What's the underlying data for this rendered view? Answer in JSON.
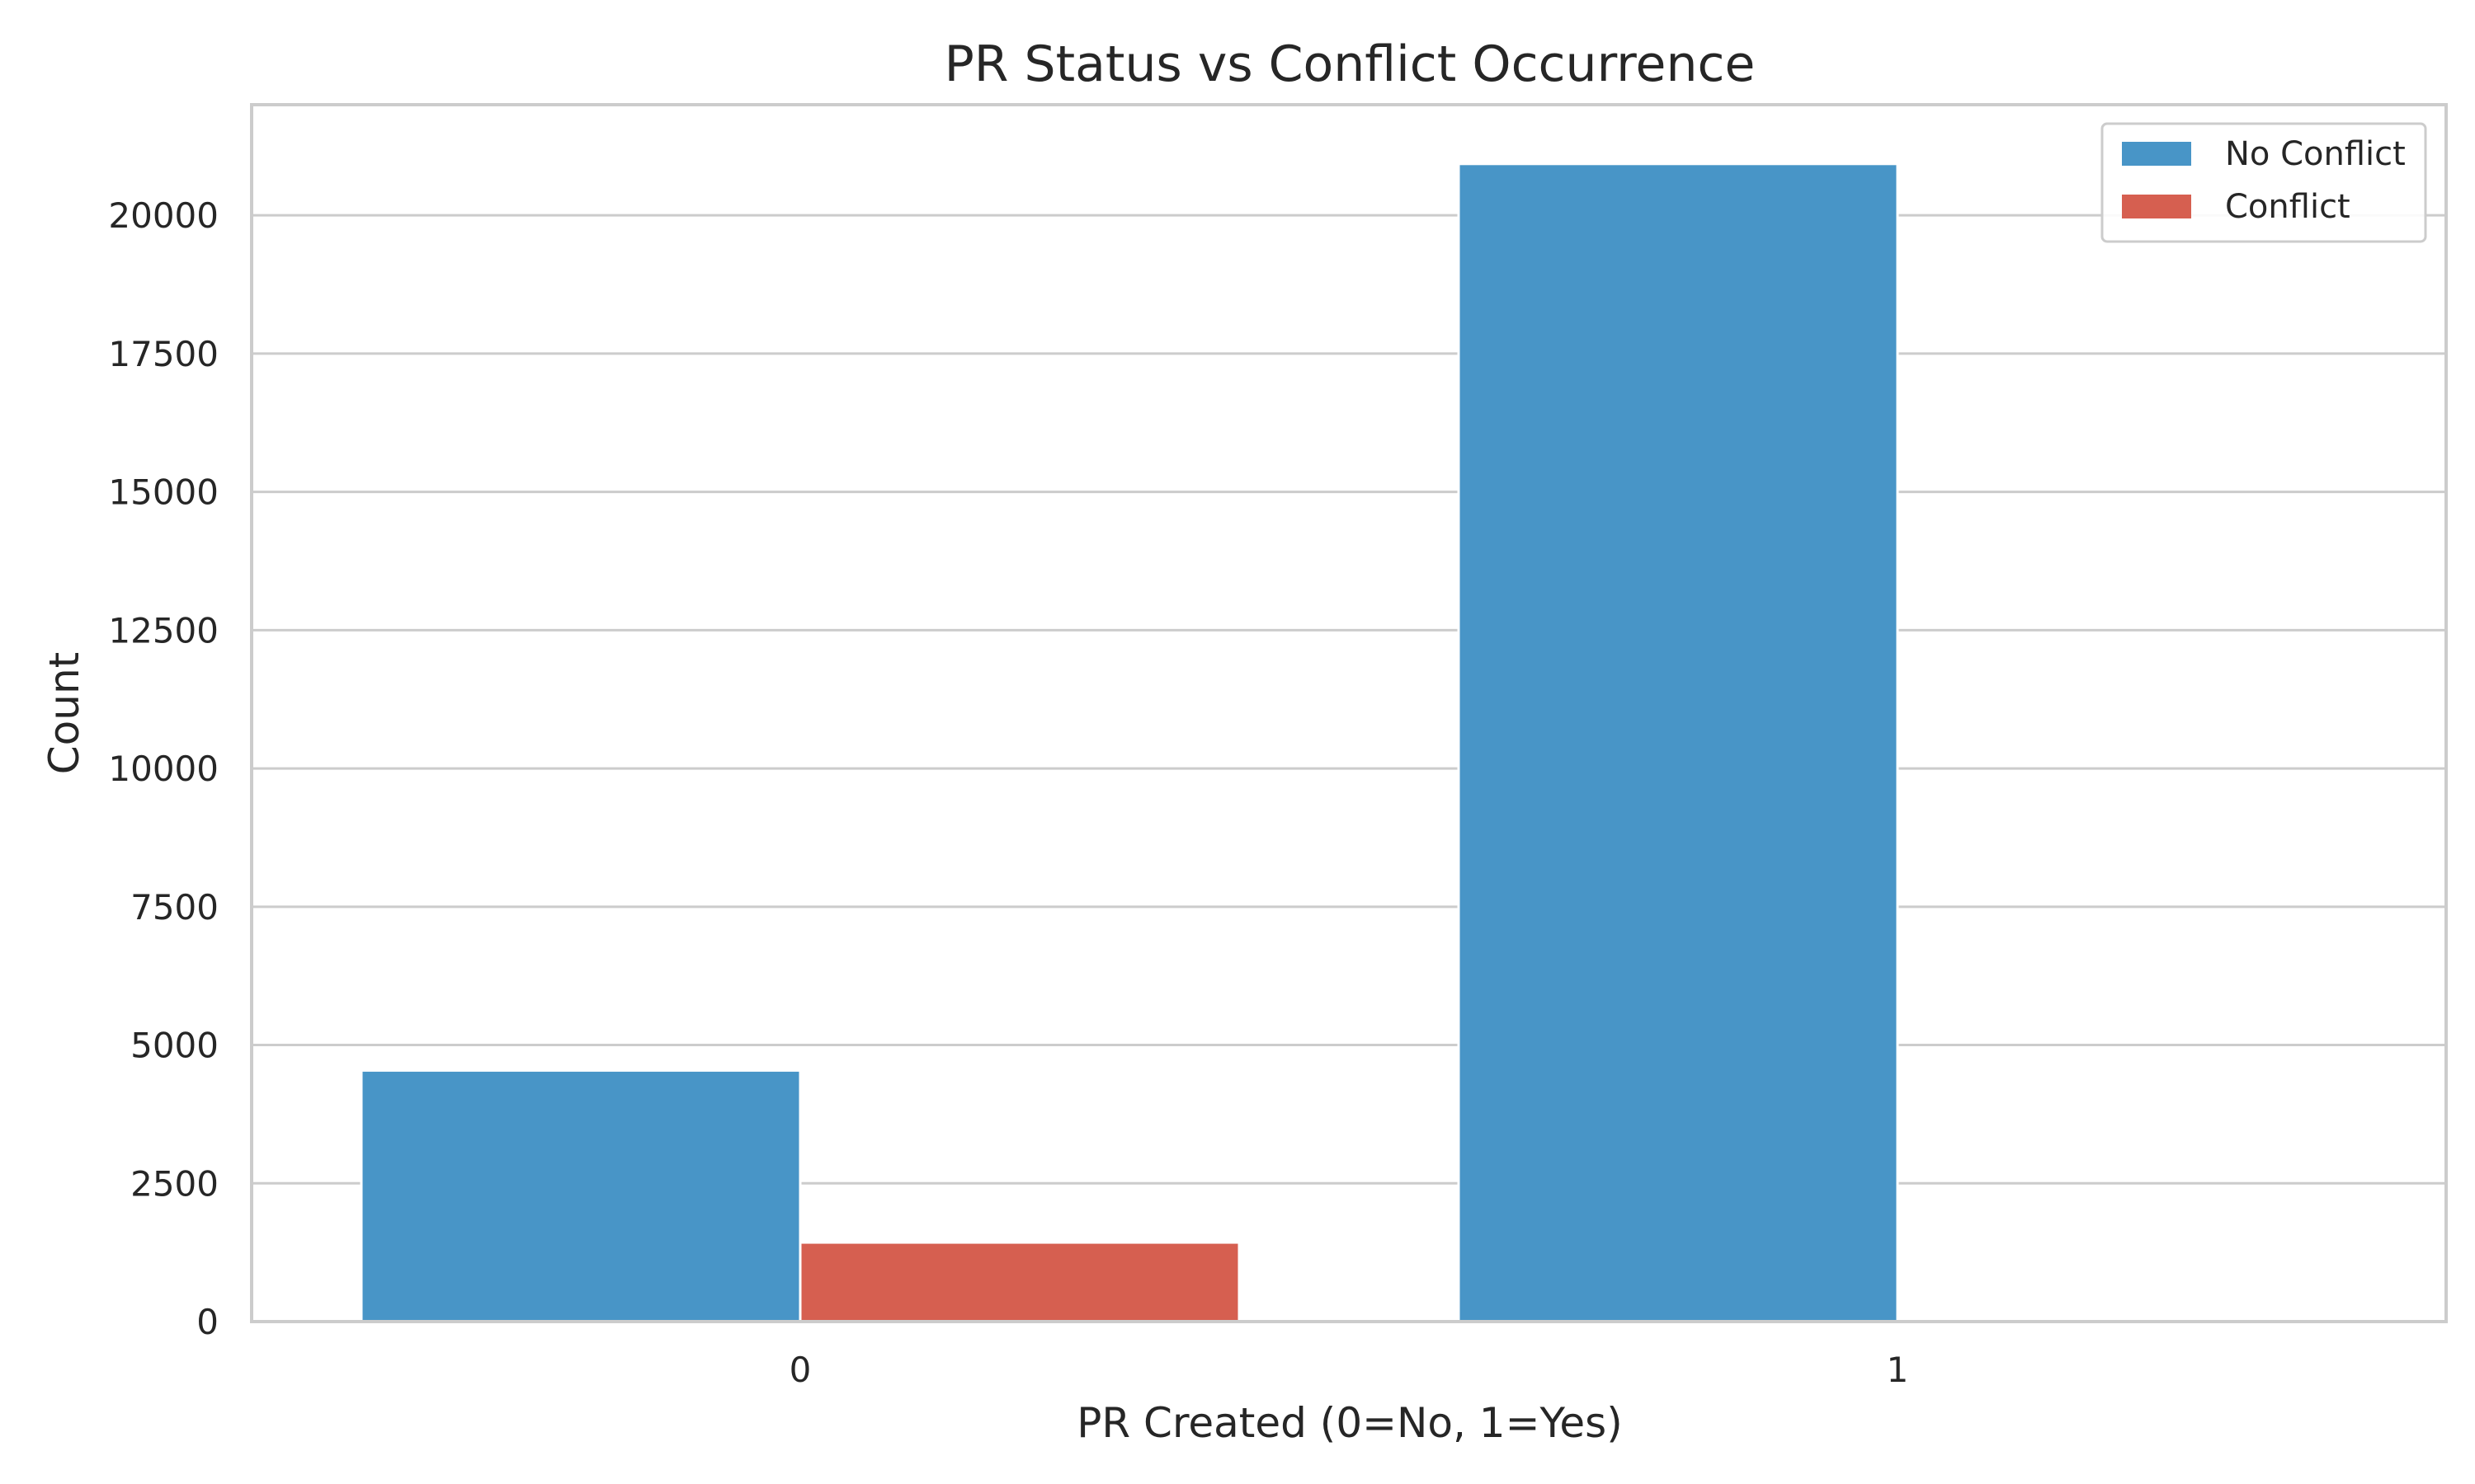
{
  "chart_data": {
    "type": "bar",
    "title": "PR Status vs Conflict Occurrence",
    "xlabel": "PR Created (0=No, 1=Yes)",
    "ylabel": "Count",
    "categories": [
      "0",
      "1"
    ],
    "series": [
      {
        "name": "No Conflict",
        "color": "#4895c7",
        "values": [
          4540,
          20930
        ]
      },
      {
        "name": "Conflict",
        "color": "#d65f50",
        "values": [
          1430,
          0
        ]
      }
    ],
    "ylim": [
      0,
      22000
    ],
    "yticks": [
      0,
      2500,
      5000,
      7500,
      10000,
      12500,
      15000,
      17500,
      20000
    ],
    "grid": true,
    "legend_position": "top-right"
  }
}
